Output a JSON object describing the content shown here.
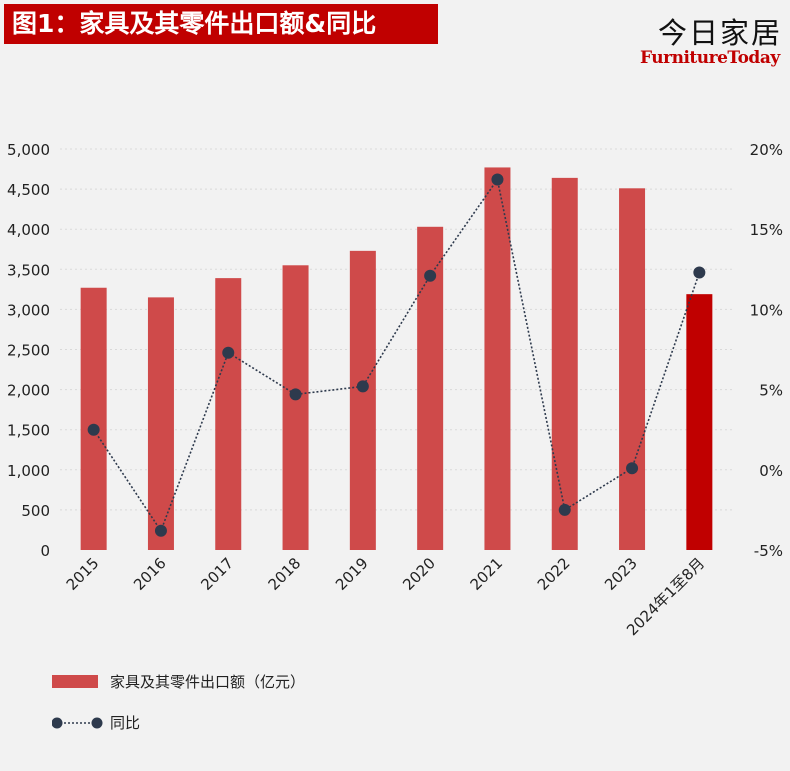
{
  "header": {
    "title": "图1：家具及其零件出口额&同比",
    "brand_cn": "今日家居",
    "brand_en": "FurnitureToday"
  },
  "colors": {
    "bar": "#cf4a4a",
    "bar_highlight": "#c00000",
    "line": "#2e3a4d",
    "title_bg": "#c00000",
    "grid": "#d9d9d9"
  },
  "chart_data": {
    "type": "bar",
    "categories": [
      "2015",
      "2016",
      "2017",
      "2018",
      "2019",
      "2020",
      "2021",
      "2022",
      "2023",
      "2024年1至8月"
    ],
    "series": [
      {
        "name": "家具及其零件出口额（亿元）",
        "type": "bar",
        "axis": "left",
        "values": [
          3270,
          3150,
          3390,
          3550,
          3730,
          4030,
          4770,
          4640,
          4510,
          3190
        ],
        "highlight_last": true
      },
      {
        "name": "同比",
        "type": "line",
        "axis": "right",
        "line_style": "dotted",
        "values": [
          2.5,
          -3.8,
          7.3,
          4.7,
          5.2,
          12.1,
          18.1,
          -2.5,
          0.1,
          12.3
        ]
      }
    ],
    "y_left": {
      "lim": [
        0,
        5000
      ],
      "ticks": [
        "0",
        "500",
        "1,000",
        "1,500",
        "2,000",
        "2,500",
        "3,000",
        "3,500",
        "4,000",
        "4,500",
        "5,000"
      ]
    },
    "y_right": {
      "lim": [
        -5,
        20
      ],
      "ticks": [
        "-5%",
        "0%",
        "5%",
        "10%",
        "15%",
        "20%"
      ]
    },
    "grid": true,
    "legend_position": "bottom-left"
  }
}
